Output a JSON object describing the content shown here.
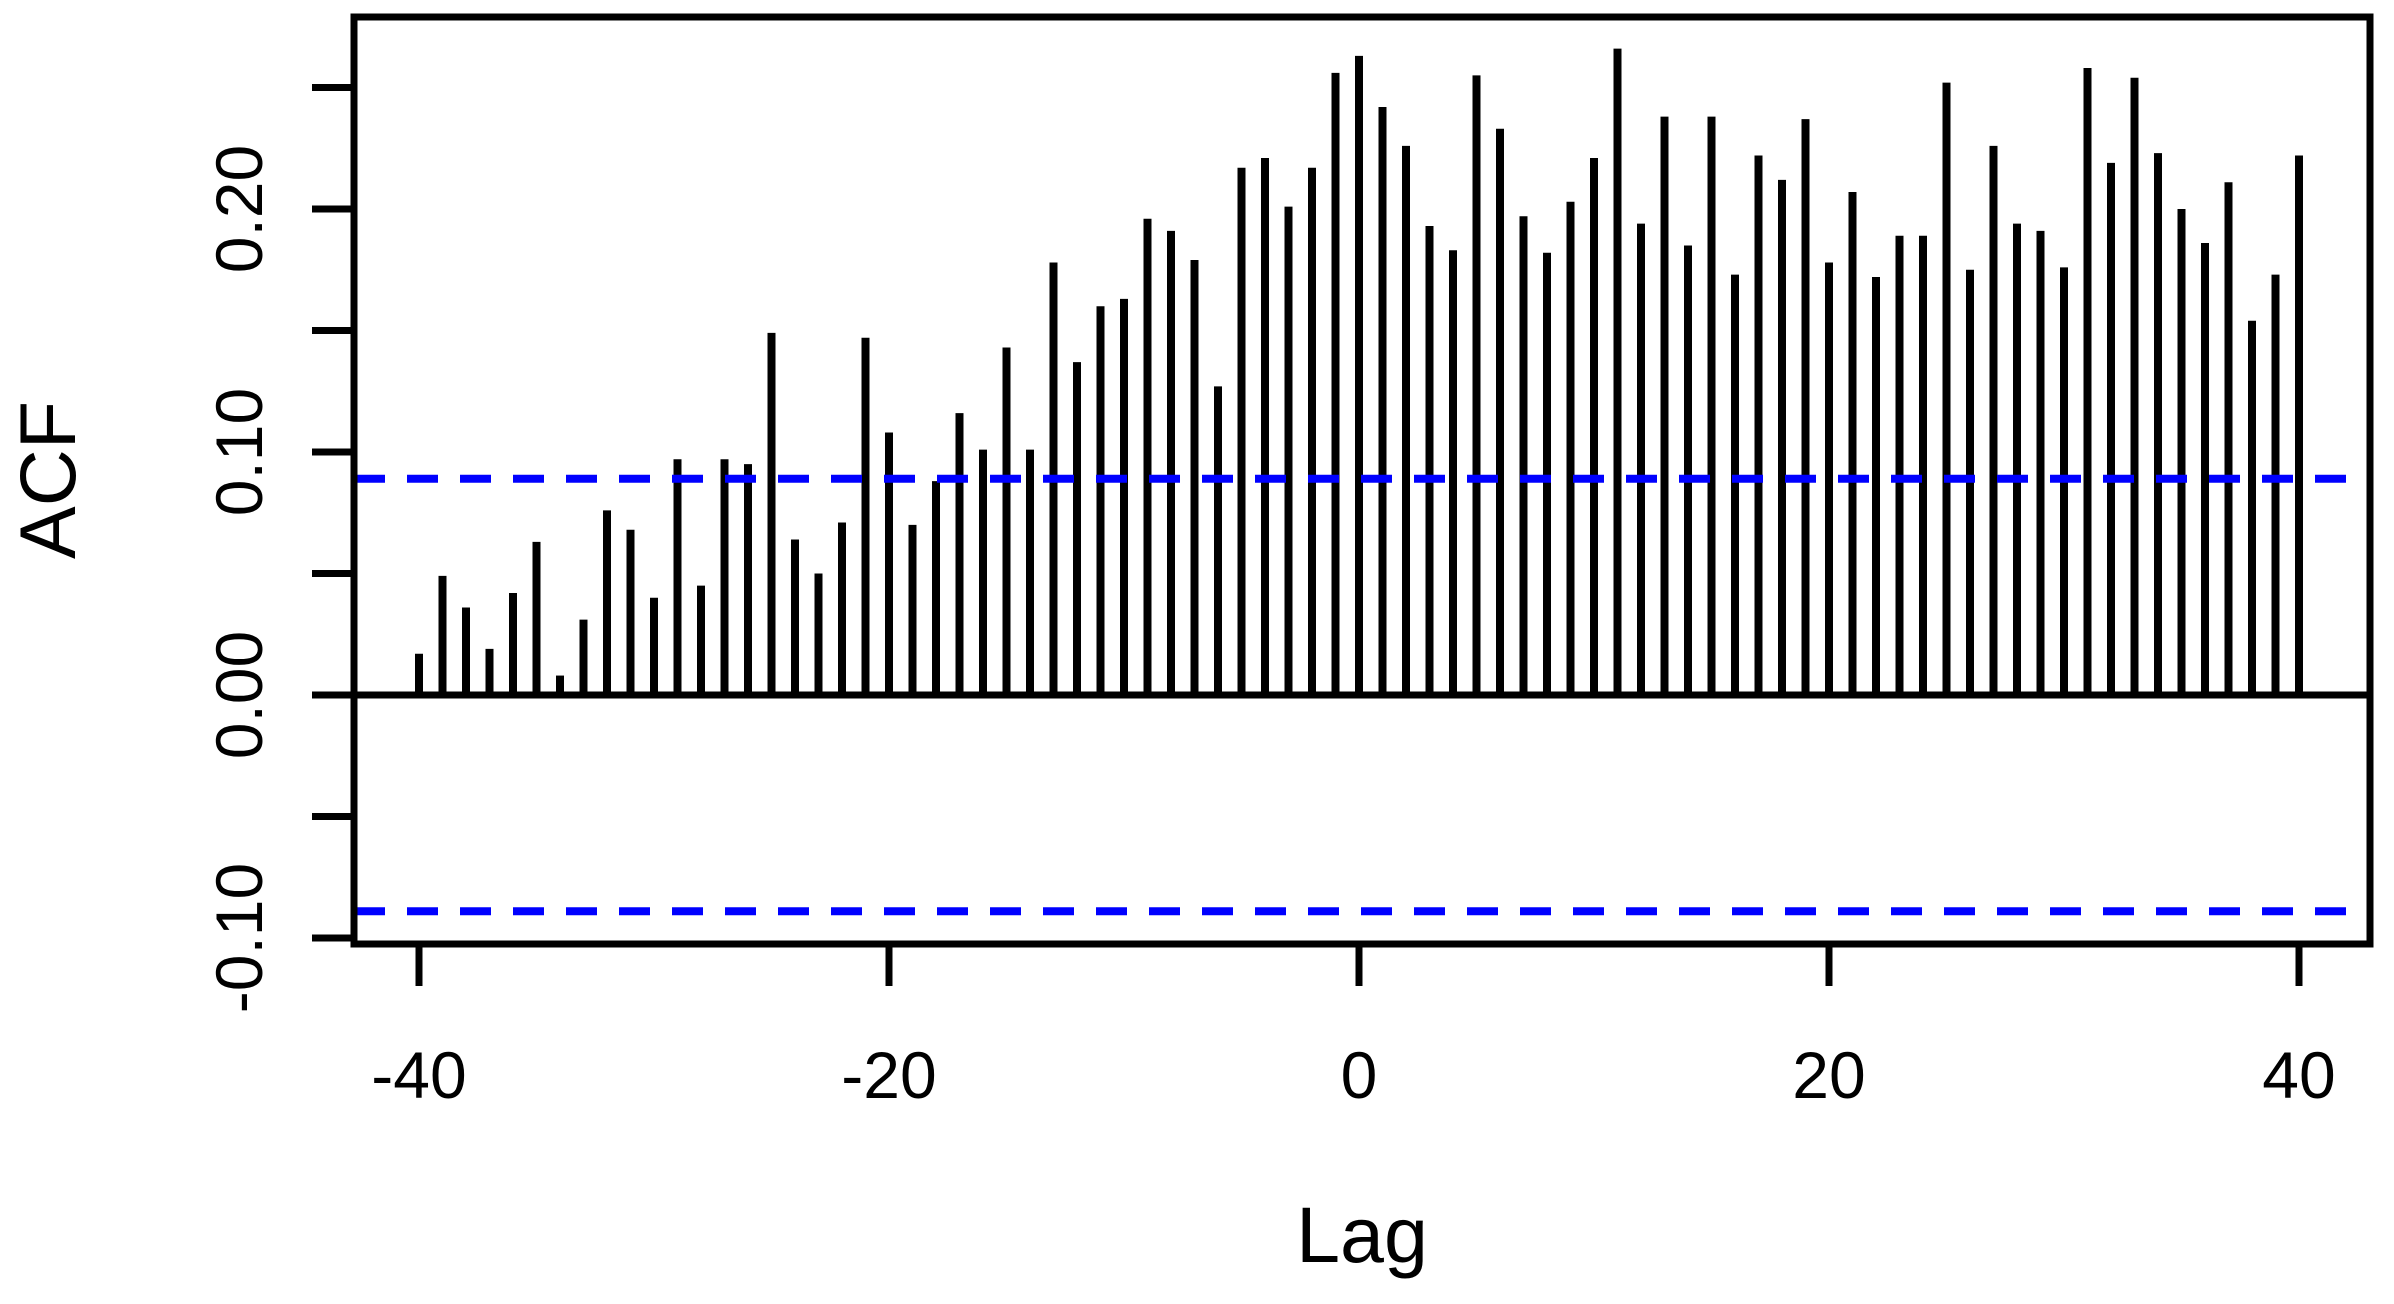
{
  "chart": {
    "kind": "correlogram",
    "xlabel": "Lag",
    "ylabel": "ACF",
    "background_color": "#ffffff",
    "bar_color": "#000000",
    "axis_color": "#000000",
    "ci_line_color": "#0000ff",
    "ci_line_style": "dashed",
    "x_tick_labels": [
      "-40",
      "-20",
      "0",
      "20",
      "40"
    ],
    "x_tick_values": [
      -40,
      -20,
      0,
      20,
      40
    ],
    "y_tick_labels": [
      "-0.10",
      "0.00",
      "0.10",
      "0.20"
    ],
    "y_tick_label_values": [
      -0.1,
      0.0,
      0.1,
      0.2
    ],
    "y_minor_tick_values": [
      -0.1,
      -0.05,
      0.0,
      0.05,
      0.1,
      0.15,
      0.2,
      0.25
    ]
  },
  "chart_data": {
    "type": "bar",
    "title": "",
    "xlabel": "Lag",
    "ylabel": "ACF",
    "legend": null,
    "grid": false,
    "xlim": [
      -43.3,
      43.3
    ],
    "ylim": [
      -0.1025,
      0.279
    ],
    "confidence_bounds": [
      0.089,
      -0.089
    ],
    "zero_line": 0.0,
    "x": [
      -40,
      -39,
      -38,
      -37,
      -36,
      -35,
      -34,
      -33,
      -32,
      -31,
      -30,
      -29,
      -28,
      -27,
      -26,
      -25,
      -24,
      -23,
      -22,
      -21,
      -20,
      -19,
      -18,
      -17,
      -16,
      -15,
      -14,
      -13,
      -12,
      -11,
      -10,
      -9,
      -8,
      -7,
      -6,
      -5,
      -4,
      -3,
      -2,
      -1,
      0,
      1,
      2,
      3,
      4,
      5,
      6,
      7,
      8,
      9,
      10,
      11,
      12,
      13,
      14,
      15,
      16,
      17,
      18,
      19,
      20,
      21,
      22,
      23,
      24,
      25,
      26,
      27,
      28,
      29,
      30,
      31,
      32,
      33,
      34,
      35,
      36,
      37,
      38,
      39,
      40
    ],
    "values": [
      0.017,
      0.049,
      0.036,
      0.019,
      0.042,
      0.063,
      0.008,
      0.031,
      0.076,
      0.068,
      0.04,
      0.097,
      0.045,
      0.097,
      0.095,
      0.149,
      0.064,
      0.05,
      0.071,
      0.147,
      0.108,
      0.07,
      0.088,
      0.116,
      0.101,
      0.143,
      0.101,
      0.178,
      0.137,
      0.16,
      0.163,
      0.196,
      0.191,
      0.179,
      0.127,
      0.217,
      0.221,
      0.201,
      0.217,
      0.256,
      0.263,
      0.242,
      0.226,
      0.193,
      0.183,
      0.255,
      0.233,
      0.197,
      0.182,
      0.203,
      0.221,
      0.266,
      0.194,
      0.238,
      0.185,
      0.238,
      0.173,
      0.222,
      0.212,
      0.237,
      0.178,
      0.207,
      0.172,
      0.189,
      0.189,
      0.252,
      0.175,
      0.226,
      0.194,
      0.191,
      0.176,
      0.258,
      0.219,
      0.254,
      0.223,
      0.2,
      0.186,
      0.211,
      0.154,
      0.173,
      0.222
    ]
  }
}
